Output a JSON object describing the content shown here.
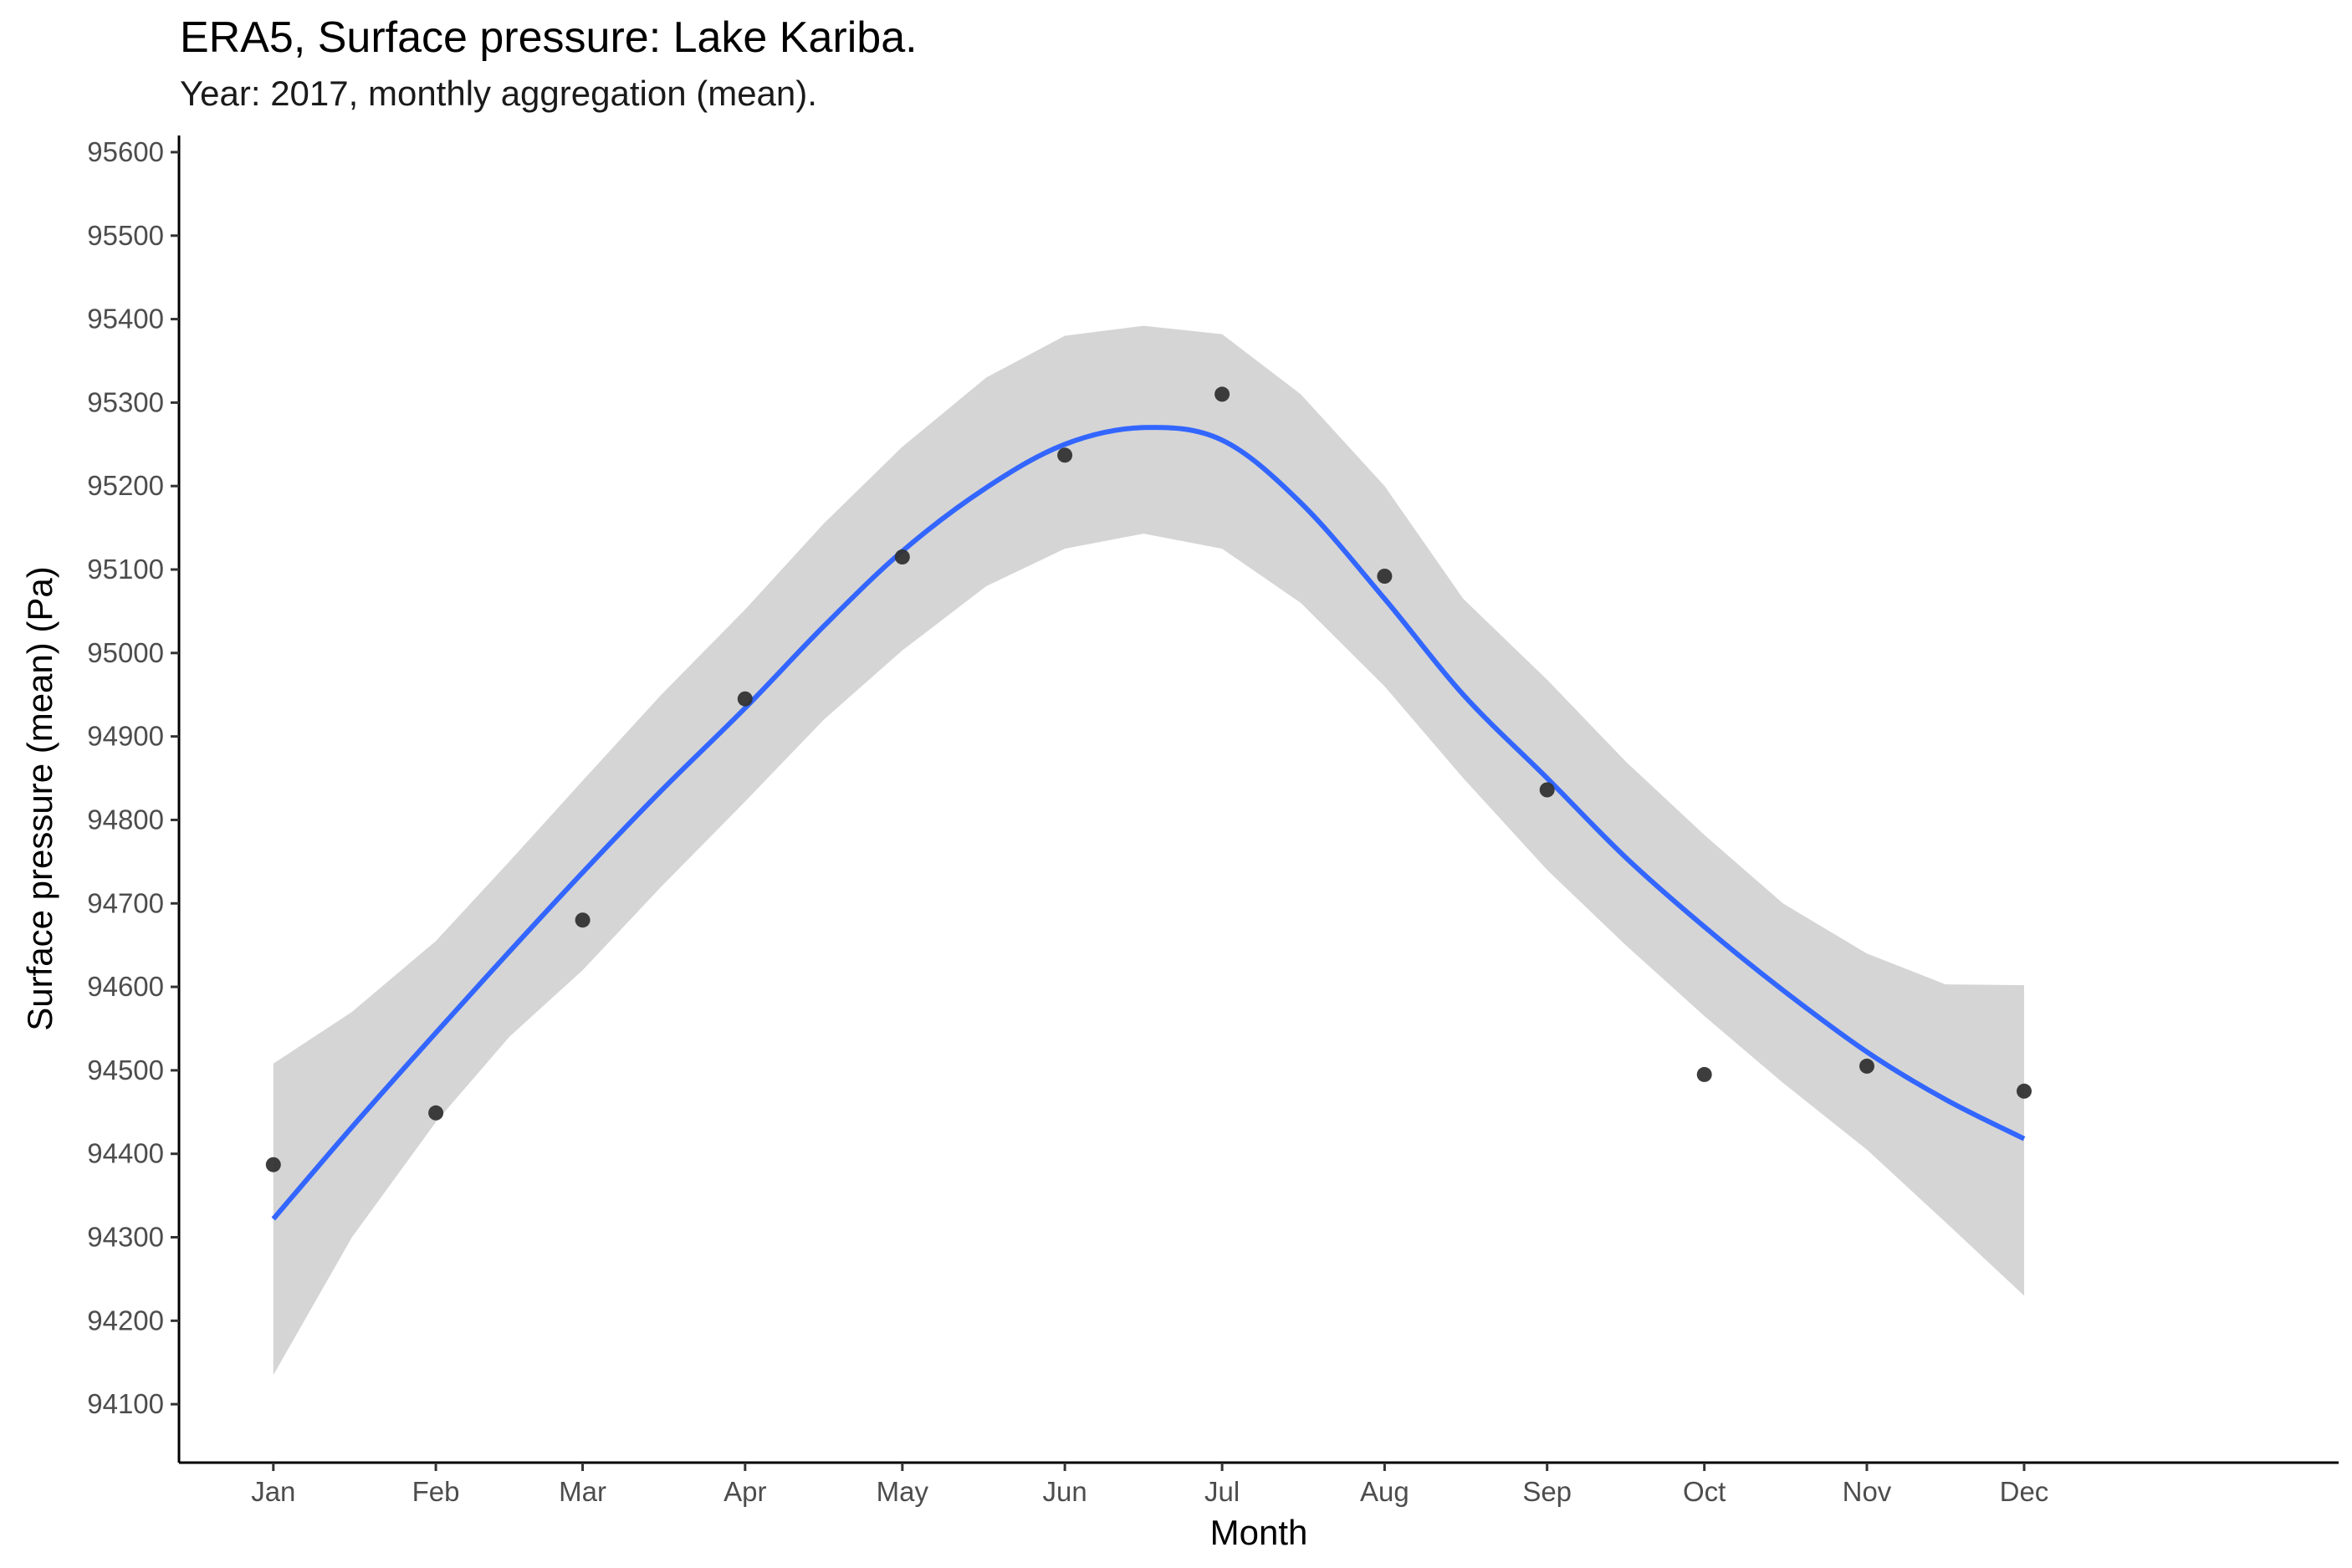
{
  "title": "ERA5, Surface pressure: Lake Kariba.",
  "subtitle": "Year: 2017, monthly aggregation (mean).",
  "chart_data": {
    "type": "scatter",
    "title": "ERA5, Surface pressure: Lake Kariba.",
    "subtitle": "Year: 2017, monthly aggregation (mean).",
    "xlabel": "Month",
    "ylabel": "Surface pressure (mean) (Pa)",
    "categories": [
      "Jan",
      "Feb",
      "Mar",
      "Apr",
      "May",
      "Jun",
      "Jul",
      "Aug",
      "Sep",
      "Oct",
      "Nov",
      "Dec"
    ],
    "x_day_of_year": [
      1,
      32,
      60,
      91,
      121,
      152,
      182,
      213,
      244,
      274,
      305,
      335
    ],
    "xlim_day_of_year": [
      -17,
      395
    ],
    "ylim": [
      94030,
      95620
    ],
    "yticks": [
      94100,
      94200,
      94300,
      94400,
      94500,
      94600,
      94700,
      94800,
      94900,
      95000,
      95100,
      95200,
      95300,
      95400,
      95500,
      95600
    ],
    "grid": false,
    "legend": "none",
    "points": {
      "values": [
        94387,
        94449,
        94680,
        94945,
        95115,
        95237,
        95310,
        95092,
        94836,
        94495,
        94505,
        94475
      ],
      "color": "#333333"
    },
    "smooth": {
      "method": "loess",
      "color": "#3366ff",
      "band_color": "#d5d5d5",
      "x_day_of_year": [
        1,
        16,
        32,
        46,
        60,
        75,
        91,
        106,
        121,
        137,
        152,
        167,
        182,
        197,
        213,
        228,
        244,
        259,
        274,
        289,
        305,
        320,
        335
      ],
      "fit": [
        94322,
        94432,
        94545,
        94642,
        94737,
        94835,
        94934,
        95032,
        95122,
        95198,
        95250,
        95270,
        95255,
        95180,
        95065,
        94950,
        94850,
        94755,
        94672,
        94596,
        94522,
        94465,
        94418
      ],
      "lower": [
        94135,
        94300,
        94438,
        94540,
        94620,
        94720,
        94822,
        94920,
        95003,
        95080,
        95125,
        95143,
        95125,
        95060,
        94960,
        94850,
        94740,
        94650,
        94565,
        94485,
        94405,
        94318,
        94230
      ],
      "upper": [
        94508,
        94570,
        94655,
        94750,
        94847,
        94950,
        95052,
        95155,
        95247,
        95330,
        95380,
        95392,
        95382,
        95310,
        95200,
        95065,
        94968,
        94870,
        94782,
        94700,
        94640,
        94603,
        94602
      ]
    }
  }
}
